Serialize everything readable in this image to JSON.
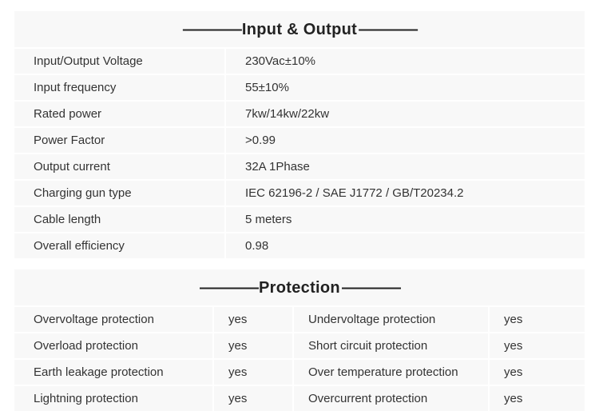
{
  "colors": {
    "section_bg": "#f8f8f8",
    "border": "#ffffff",
    "text": "#333333",
    "header_text": "#222222"
  },
  "typography": {
    "header_fontsize": 20,
    "body_fontsize": 15,
    "font_family": "Arial"
  },
  "sections": {
    "input_output": {
      "title": "Input & Output",
      "rows": [
        {
          "label": "Input/Output Voltage",
          "value": "230Vac±10%"
        },
        {
          "label": "Input frequency",
          "value": "55±10%"
        },
        {
          "label": "Rated power",
          "value": "7kw/14kw/22kw"
        },
        {
          "label": "Power Factor",
          "value": ">0.99"
        },
        {
          "label": "Output current",
          "value": "32A 1Phase"
        },
        {
          "label": "Charging gun type",
          "value": "IEC 62196-2 / SAE J1772 / GB/T20234.2"
        },
        {
          "label": "Cable length",
          "value": "5 meters"
        },
        {
          "label": "Overall efficiency",
          "value": "0.98"
        }
      ]
    },
    "protection": {
      "title": "Protection",
      "rows": [
        {
          "l1": "Overvoltage protection",
          "v1": "yes",
          "l2": "Undervoltage protection",
          "v2": "yes"
        },
        {
          "l1": "Overload protection",
          "v1": "yes",
          "l2": "Short circuit protection",
          "v2": "yes"
        },
        {
          "l1": "Earth leakage protection",
          "v1": "yes",
          "l2": "Over temperature protection",
          "v2": "yes"
        },
        {
          "l1": "Lightning protection",
          "v1": "yes",
          "l2": "Overcurrent protection",
          "v2": "yes"
        }
      ]
    }
  }
}
